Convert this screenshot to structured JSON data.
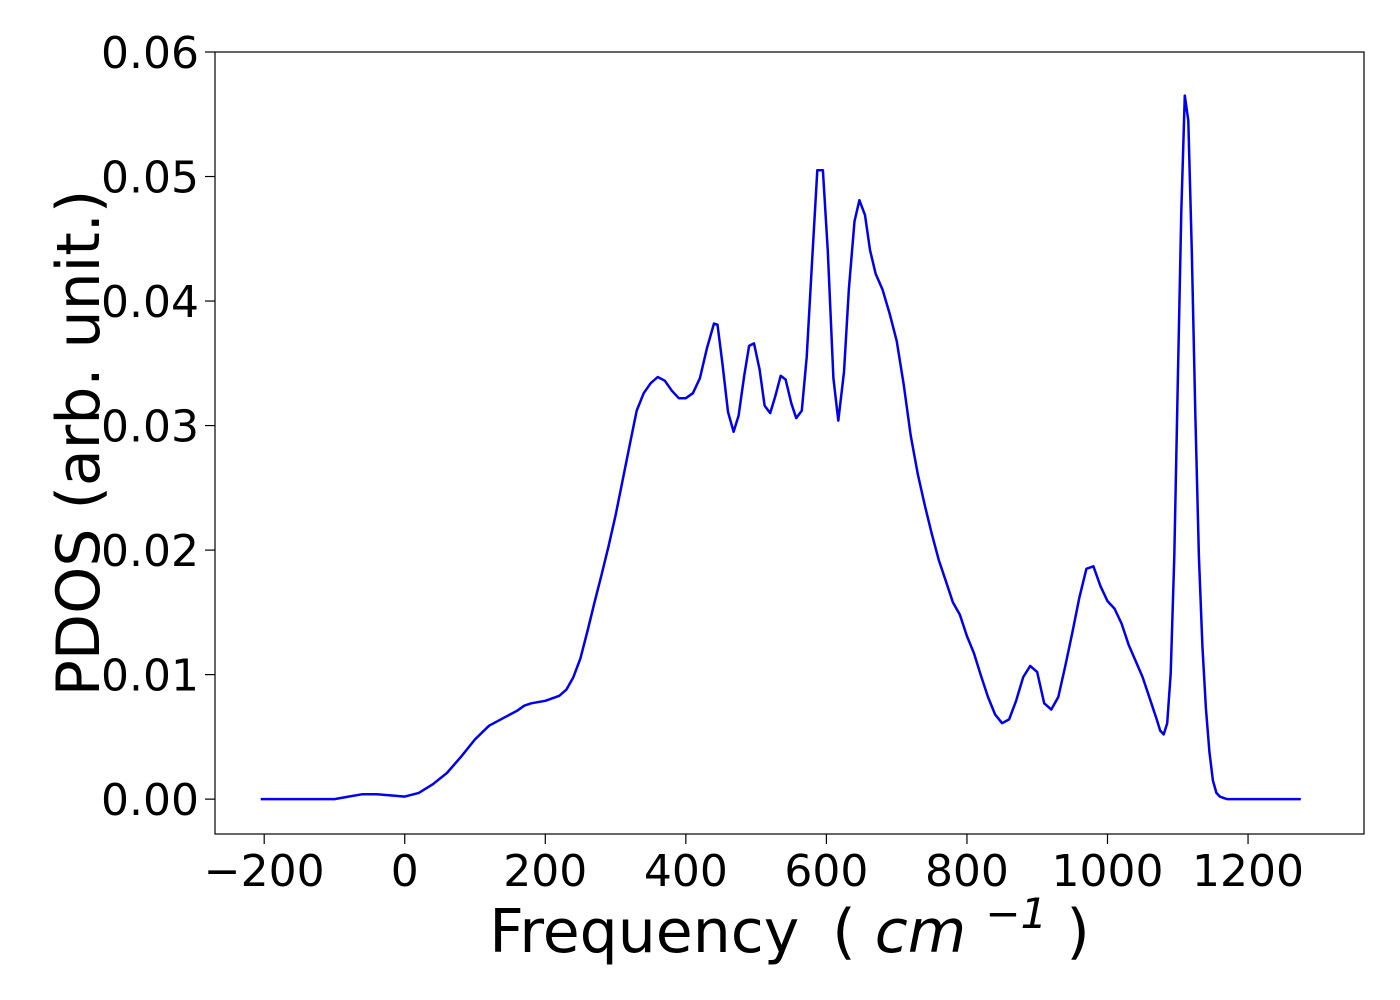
{
  "chart_data": {
    "type": "line",
    "xlabel": "Frequency",
    "xlabel_paren_open": "(",
    "xlabel_unit_base": "cm",
    "xlabel_unit_exp": "−1",
    "xlabel_paren_close": ")",
    "ylabel": "PDOS (arb. unit.)",
    "xlim": [
      -270,
      1365
    ],
    "ylim": [
      -0.0028,
      0.06
    ],
    "xticks": [
      -200,
      0,
      200,
      400,
      600,
      800,
      1000,
      1200
    ],
    "xtick_labels": [
      "−200",
      "0",
      "200",
      "400",
      "600",
      "800",
      "1000",
      "1200"
    ],
    "yticks": [
      0.0,
      0.01,
      0.02,
      0.03,
      0.04,
      0.05,
      0.06
    ],
    "ytick_labels": [
      "0.00",
      "0.01",
      "0.02",
      "0.03",
      "0.04",
      "0.05",
      "0.06"
    ],
    "grid": false,
    "series": [
      {
        "color": "#0000ee",
        "x": [
          -205,
          -150,
          -100,
          -80,
          -60,
          -40,
          -20,
          0,
          20,
          40,
          60,
          80,
          100,
          120,
          140,
          160,
          170,
          180,
          200,
          210,
          220,
          230,
          240,
          250,
          260,
          270,
          280,
          290,
          300,
          310,
          320,
          330,
          340,
          350,
          360,
          370,
          380,
          390,
          400,
          410,
          420,
          430,
          440,
          445,
          452,
          460,
          468,
          475,
          483,
          490,
          497,
          505,
          512,
          520,
          527,
          535,
          542,
          550,
          557,
          565,
          572,
          580,
          587,
          595,
          602,
          610,
          617,
          625,
          632,
          640,
          647,
          655,
          662,
          670,
          680,
          690,
          700,
          710,
          720,
          730,
          740,
          750,
          760,
          770,
          780,
          790,
          800,
          810,
          820,
          830,
          840,
          850,
          860,
          870,
          880,
          890,
          900,
          910,
          920,
          930,
          940,
          950,
          960,
          970,
          980,
          990,
          1000,
          1010,
          1020,
          1030,
          1040,
          1050,
          1060,
          1070,
          1075,
          1080,
          1085,
          1090,
          1095,
          1100,
          1105,
          1110,
          1115,
          1120,
          1125,
          1130,
          1135,
          1140,
          1145,
          1150,
          1155,
          1160,
          1165,
          1170,
          1175,
          1180,
          1185,
          1190,
          1200,
          1220,
          1250,
          1275
        ],
        "y": [
          0.0,
          0.0,
          0.0,
          0.0002,
          0.0004,
          0.0004,
          0.0003,
          0.0002,
          0.0005,
          0.0012,
          0.0021,
          0.0034,
          0.0048,
          0.0059,
          0.0065,
          0.0071,
          0.0075,
          0.0077,
          0.0079,
          0.0081,
          0.0083,
          0.0088,
          0.0098,
          0.0113,
          0.0135,
          0.0158,
          0.018,
          0.0203,
          0.0228,
          0.0256,
          0.0284,
          0.0312,
          0.0326,
          0.0334,
          0.0339,
          0.0336,
          0.0328,
          0.0322,
          0.0322,
          0.0326,
          0.0338,
          0.0362,
          0.0382,
          0.0381,
          0.035,
          0.0311,
          0.0295,
          0.0308,
          0.034,
          0.0364,
          0.0366,
          0.0345,
          0.0316,
          0.031,
          0.0323,
          0.034,
          0.0337,
          0.0318,
          0.0306,
          0.0312,
          0.0355,
          0.0435,
          0.0505,
          0.0505,
          0.044,
          0.0338,
          0.0304,
          0.0343,
          0.041,
          0.0464,
          0.0481,
          0.0469,
          0.0441,
          0.0422,
          0.0409,
          0.039,
          0.0368,
          0.0333,
          0.0292,
          0.0261,
          0.0236,
          0.0213,
          0.0192,
          0.0175,
          0.0158,
          0.0148,
          0.0131,
          0.0117,
          0.0099,
          0.0082,
          0.0068,
          0.0061,
          0.0064,
          0.0079,
          0.0098,
          0.0107,
          0.0102,
          0.0077,
          0.0072,
          0.0082,
          0.0107,
          0.0134,
          0.0162,
          0.0185,
          0.0187,
          0.0171,
          0.0159,
          0.0153,
          0.0141,
          0.0124,
          0.0111,
          0.0098,
          0.0081,
          0.0064,
          0.0055,
          0.0052,
          0.0061,
          0.0101,
          0.0195,
          0.0335,
          0.0472,
          0.0565,
          0.0545,
          0.044,
          0.031,
          0.0195,
          0.0123,
          0.0073,
          0.0038,
          0.0015,
          0.0005,
          0.0002,
          0.0001,
          0.0,
          0.0,
          0.0,
          0.0,
          0.0,
          0.0,
          0.0,
          0.0,
          0.0
        ]
      }
    ]
  }
}
